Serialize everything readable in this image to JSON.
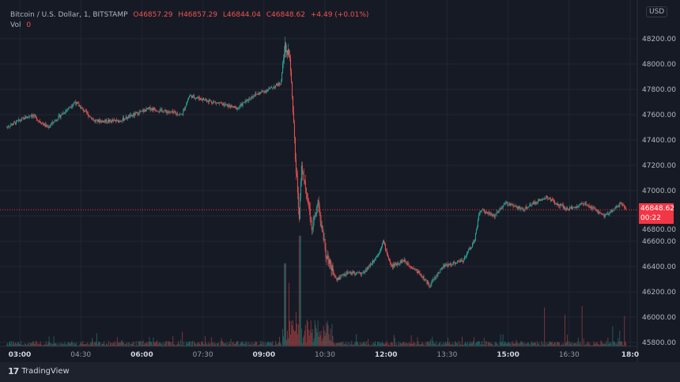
{
  "legend": {
    "symbol": "Bitcoin / U.S. Dollar, 1, BITSTAMP",
    "open": "O46857.29",
    "high": "H46857.29",
    "low": "L46844.04",
    "close": "C46848.62",
    "change": "+4.49 (+0.01%)",
    "vol_label": "Vol",
    "vol_value": "0"
  },
  "currency_button": "USD",
  "last_price": {
    "price": "46848.62",
    "countdown": "00:22"
  },
  "branding": "TradingView",
  "colors": {
    "background": "#161a25",
    "grid": "#222632",
    "up": "#26a69a",
    "down": "#ef5350",
    "last_price": "#f23645",
    "text": "#b2b5be"
  },
  "chart_data": {
    "type": "candlestick",
    "interval": "1 minute",
    "ylim": [
      45800,
      48300
    ],
    "y_ticks": [
      "48200.00",
      "48000.00",
      "47800.00",
      "47600.00",
      "47400.00",
      "47200.00",
      "47000.00",
      "46800.00",
      "46600.00",
      "46400.00",
      "46200.00",
      "46000.00",
      "45800.00"
    ],
    "x_ticks": [
      "03:00",
      "04:30",
      "06:00",
      "07:30",
      "09:00",
      "10:30",
      "12:00",
      "13:30",
      "15:00",
      "16:30",
      "18:0"
    ],
    "grid": true,
    "price_path": [
      [
        "02:40",
        47500
      ],
      [
        "03:17",
        47600
      ],
      [
        "03:41",
        47500
      ],
      [
        "04:21",
        47700
      ],
      [
        "04:50",
        47550
      ],
      [
        "05:25",
        47550
      ],
      [
        "06:11",
        47650
      ],
      [
        "06:58",
        47600
      ],
      [
        "07:09",
        47750
      ],
      [
        "07:44",
        47700
      ],
      [
        "08:19",
        47650
      ],
      [
        "08:42",
        47750
      ],
      [
        "09:05",
        47800
      ],
      [
        "09:23",
        47850
      ],
      [
        "09:29",
        48150
      ],
      [
        "09:36",
        48050
      ],
      [
        "09:40",
        47700
      ],
      [
        "09:45",
        47200
      ],
      [
        "09:50",
        46800
      ],
      [
        "09:53",
        47200
      ],
      [
        "10:09",
        46700
      ],
      [
        "10:18",
        46900
      ],
      [
        "10:29",
        46500
      ],
      [
        "10:44",
        46300
      ],
      [
        "11:01",
        46350
      ],
      [
        "11:25",
        46350
      ],
      [
        "11:46",
        46500
      ],
      [
        "11:53",
        46600
      ],
      [
        "12:05",
        46400
      ],
      [
        "12:23",
        46450
      ],
      [
        "12:46",
        46350
      ],
      [
        "13:01",
        46250
      ],
      [
        "13:21",
        46400
      ],
      [
        "13:50",
        46450
      ],
      [
        "14:07",
        46600
      ],
      [
        "14:15",
        46850
      ],
      [
        "14:36",
        46800
      ],
      [
        "14:53",
        46900
      ],
      [
        "15:17",
        46850
      ],
      [
        "15:51",
        46950
      ],
      [
        "16:24",
        46850
      ],
      [
        "16:49",
        46900
      ],
      [
        "17:18",
        46800
      ],
      [
        "17:42",
        46900
      ],
      [
        "17:50",
        46848.62
      ]
    ],
    "last_close": 46848.62
  }
}
